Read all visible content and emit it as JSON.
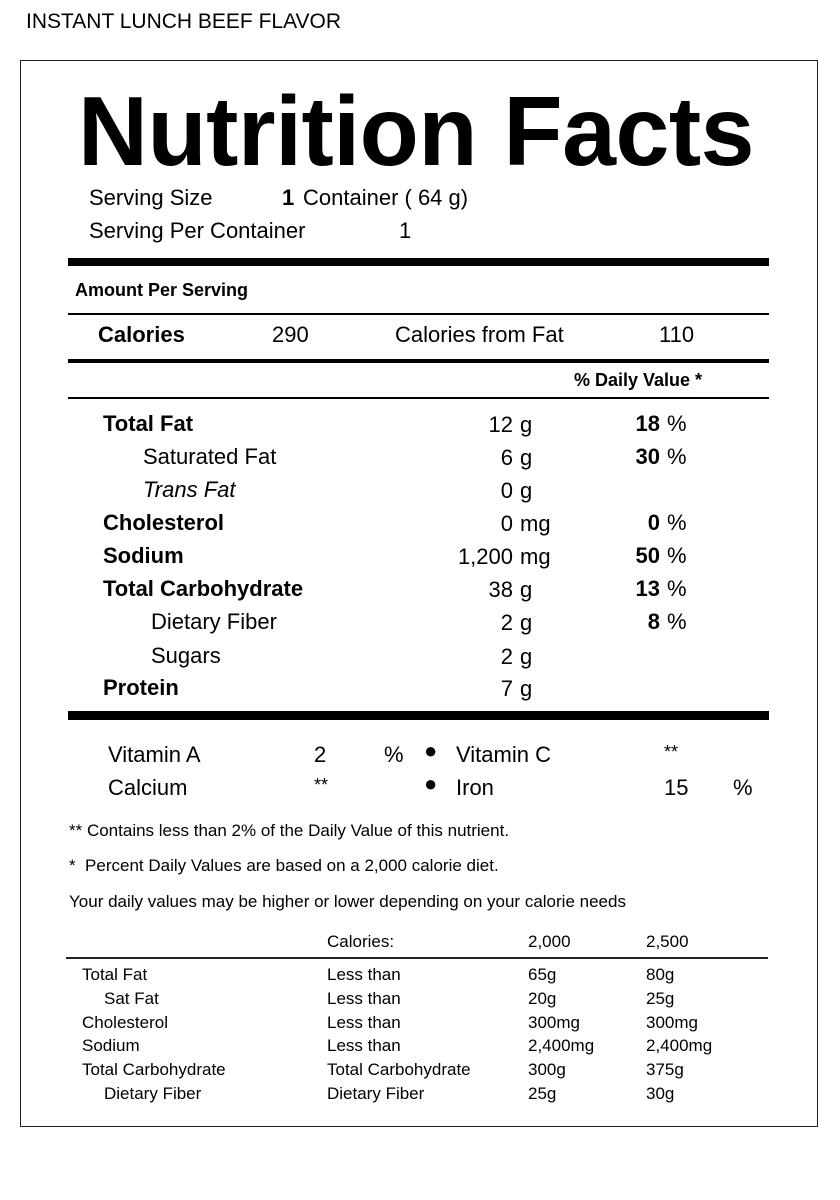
{
  "product_name": "INSTANT LUNCH  BEEF FLAVOR",
  "title": "Nutrition Facts",
  "serving": {
    "size_label": "Serving Size",
    "size_qty": "1",
    "size_value": "Container ( 64 g)",
    "per_container_label": "Serving Per Container",
    "per_container_value": "1"
  },
  "amount_per_serving": "Amount Per Serving",
  "calories": {
    "label": "Calories",
    "value": "290",
    "from_fat_label": "Calories from Fat",
    "from_fat_value": "110"
  },
  "daily_value_header": "% Daily Value *",
  "nutrients": [
    {
      "name": "Total Fat",
      "num": "12",
      "unit": "g",
      "dv": "18",
      "pct": "%"
    },
    {
      "name": "Saturated Fat",
      "num": "6",
      "unit": "g",
      "dv": "30",
      "pct": "%"
    },
    {
      "name": "Trans Fat",
      "num": "0",
      "unit": "g"
    },
    {
      "name": "Cholesterol",
      "num": "0",
      "unit": "mg",
      "dv": "0",
      "pct": "%"
    },
    {
      "name": "Sodium",
      "num": "1,200",
      "unit": "mg",
      "dv": "50",
      "pct": "%"
    },
    {
      "name": "Total Carbohydrate",
      "num": "38",
      "unit": "g",
      "dv": "13",
      "pct": "%"
    },
    {
      "name": "Dietary Fiber",
      "num": "2",
      "unit": "g",
      "dv": "8",
      "pct": "%"
    },
    {
      "name": "Sugars",
      "num": "2",
      "unit": "g"
    },
    {
      "name": "Protein",
      "num": "7",
      "unit": "g"
    }
  ],
  "vitamins": {
    "vitamin_a": {
      "label": "Vitamin A",
      "value": "2",
      "pct": "%"
    },
    "vitamin_c": {
      "label": "Vitamin C",
      "value": "**"
    },
    "calcium": {
      "label": "Calcium",
      "value": "**"
    },
    "iron": {
      "label": "Iron",
      "value": "15",
      "pct": "%"
    }
  },
  "footnotes": [
    "** Contains less than 2% of the Daily Value of this nutrient.",
    "*  Percent Daily Values are based on a 2,000 calorie diet.",
    "Your daily values may be higher or lower depending on your calorie needs"
  ],
  "reference_table": {
    "headers": [
      "",
      "Calories:",
      "2,000",
      "2,500"
    ],
    "rows": [
      [
        "Total Fat",
        "Less than",
        "65g",
        "80g"
      ],
      [
        "Sat Fat",
        "Less than",
        "20g",
        "25g"
      ],
      [
        "Cholesterol",
        "Less than",
        "300mg",
        "300mg"
      ],
      [
        "Sodium",
        "Less than",
        "2,400mg",
        "2,400mg"
      ],
      [
        "Total Carbohydrate",
        "Total Carbohydrate",
        "300g",
        "375g"
      ],
      [
        "Dietary Fiber",
        "Dietary Fiber",
        "25g",
        "30g"
      ]
    ]
  }
}
